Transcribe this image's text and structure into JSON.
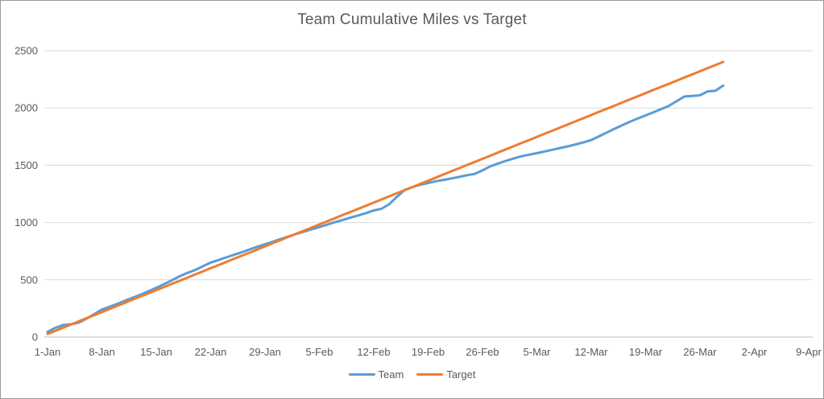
{
  "chart_data": {
    "type": "line",
    "title": "Team Cumulative Miles vs Target",
    "xlabel": "",
    "ylabel": "",
    "grid": true,
    "legend_position": "bottom",
    "ylim": [
      0,
      2500
    ],
    "y_ticks": [
      0,
      500,
      1000,
      1500,
      2000,
      2500
    ],
    "x_tick_labels": [
      "1-Jan",
      "8-Jan",
      "15-Jan",
      "22-Jan",
      "29-Jan",
      "5-Feb",
      "12-Feb",
      "19-Feb",
      "26-Feb",
      "5-Mar",
      "12-Mar",
      "19-Mar",
      "26-Mar",
      "2-Apr",
      "9-Apr"
    ],
    "x_tick_days": [
      0,
      7,
      14,
      21,
      28,
      35,
      42,
      49,
      56,
      63,
      70,
      77,
      84,
      91,
      98
    ],
    "x_domain_days": [
      0,
      98
    ],
    "x_unit": "day (daily points, day 0 = 1-Jan, data ends day 87 = 29-Mar)",
    "series": [
      {
        "name": "Team",
        "color": "#5b9bd5",
        "start_day": 0,
        "values": [
          45,
          80,
          105,
          112,
          125,
          160,
          200,
          240,
          265,
          290,
          318,
          345,
          370,
          400,
          430,
          462,
          495,
          530,
          560,
          585,
          618,
          650,
          672,
          695,
          718,
          740,
          765,
          788,
          810,
          832,
          855,
          878,
          900,
          920,
          940,
          960,
          982,
          1003,
          1022,
          1042,
          1062,
          1082,
          1105,
          1120,
          1160,
          1225,
          1285,
          1310,
          1330,
          1345,
          1360,
          1372,
          1385,
          1398,
          1412,
          1425,
          1455,
          1490,
          1515,
          1538,
          1558,
          1578,
          1592,
          1605,
          1620,
          1635,
          1650,
          1665,
          1682,
          1700,
          1720,
          1752,
          1785,
          1818,
          1850,
          1880,
          1908,
          1935,
          1962,
          1990,
          2018,
          2060,
          2100,
          2105,
          2110,
          2145,
          2150,
          2195
        ]
      },
      {
        "name": "Target",
        "color": "#ed7d31",
        "start_day": 0,
        "values": [
          27,
          55,
          82,
          109,
          137,
          164,
          191,
          218,
          246,
          273,
          300,
          328,
          355,
          382,
          410,
          437,
          464,
          491,
          519,
          546,
          573,
          601,
          628,
          655,
          683,
          710,
          737,
          764,
          792,
          819,
          846,
          874,
          901,
          928,
          956,
          983,
          1010,
          1037,
          1065,
          1092,
          1119,
          1147,
          1174,
          1201,
          1229,
          1256,
          1283,
          1310,
          1338,
          1365,
          1392,
          1420,
          1447,
          1474,
          1502,
          1529,
          1556,
          1583,
          1611,
          1638,
          1665,
          1693,
          1720,
          1747,
          1775,
          1802,
          1829,
          1856,
          1884,
          1911,
          1938,
          1966,
          1993,
          2020,
          2048,
          2075,
          2102,
          2129,
          2157,
          2184,
          2211,
          2239,
          2266,
          2293,
          2320,
          2348,
          2375,
          2402
        ]
      }
    ]
  },
  "legend": {
    "items": [
      {
        "label": "Team",
        "color": "#5b9bd5"
      },
      {
        "label": "Target",
        "color": "#ed7d31"
      }
    ]
  },
  "style": {
    "grid_color": "#d9d9d9",
    "axis_color": "#bfbfbf",
    "text_color": "#595959"
  }
}
